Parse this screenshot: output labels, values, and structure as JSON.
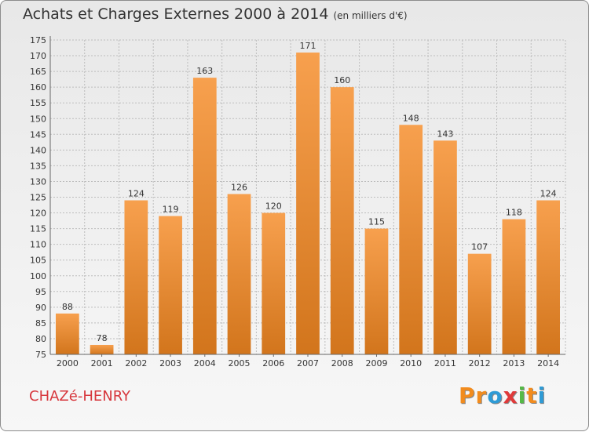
{
  "header": {
    "title": "Achats et Charges Externes 2000 à 2014",
    "unit": "(en milliers d'€)"
  },
  "footer": {
    "commune": "CHAZé-HENRY",
    "brand_letters": [
      "P",
      "r",
      "o",
      "x",
      "i",
      "t",
      "i"
    ],
    "brand_colors": [
      "#f28c1e",
      "#f28c1e",
      "#2e9bd6",
      "#e03a3a",
      "#55b947",
      "#f28c1e",
      "#2e9bd6"
    ]
  },
  "chart_data": {
    "type": "bar",
    "title": "Achats et Charges Externes 2000 à 2014",
    "subtitle": "(en milliers d'€)",
    "xlabel": "",
    "ylabel": "",
    "categories": [
      "2000",
      "2001",
      "2002",
      "2003",
      "2004",
      "2005",
      "2006",
      "2007",
      "2008",
      "2009",
      "2010",
      "2011",
      "2012",
      "2013",
      "2014"
    ],
    "values": [
      88,
      78,
      124,
      119,
      163,
      126,
      120,
      171,
      160,
      115,
      148,
      143,
      107,
      118,
      124
    ],
    "ylim": [
      75,
      175
    ],
    "ytick_step": 5,
    "grid": true,
    "legend": "none",
    "bar_color_top": "#f7a04e",
    "bar_color_bottom": "#d2751c"
  }
}
